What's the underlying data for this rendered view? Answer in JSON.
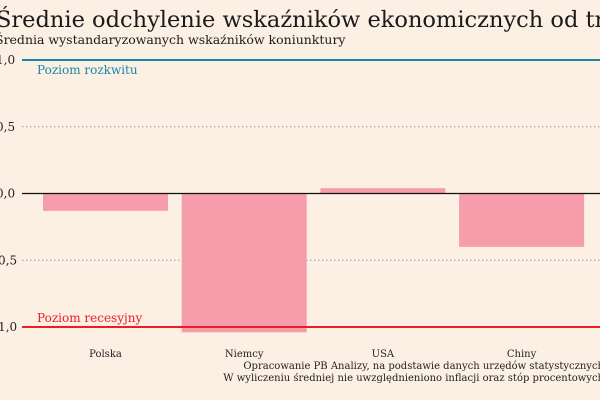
{
  "chart_data": {
    "type": "bar",
    "title": "Średnie odchylenie wskaźników ekonomicznych od trendu",
    "subtitle": "Średnia wystandaryzowanych wskaźników koniunktury",
    "categories": [
      "Polska",
      "Niemcy",
      "USA",
      "Chiny"
    ],
    "values": [
      -0.13,
      -1.04,
      0.04,
      -0.4
    ],
    "ylim": [
      -1.0,
      1.0
    ],
    "yticks": [
      1.0,
      0.5,
      0.0,
      -0.5,
      -1.0
    ],
    "ytick_labels": [
      "1,0",
      "0,5",
      "0,0",
      "−0,5",
      "−1,0"
    ],
    "grid": "dotted at ±0.5",
    "reference_lines": [
      {
        "value": 1.0,
        "label": "Poziom rozkwitu",
        "color": "#1a86a8"
      },
      {
        "value": -1.0,
        "label": "Poziom recesyjny",
        "color": "#ee1c25"
      }
    ],
    "bar_color": "#f59dab",
    "footnotes": [
      "Opracowanie PB Analizy, na podstawie danych urzędów statystycznych",
      "W wyliczeniu średniej nie uwzględnieniono inflacji oraz stóp procentowych"
    ]
  }
}
